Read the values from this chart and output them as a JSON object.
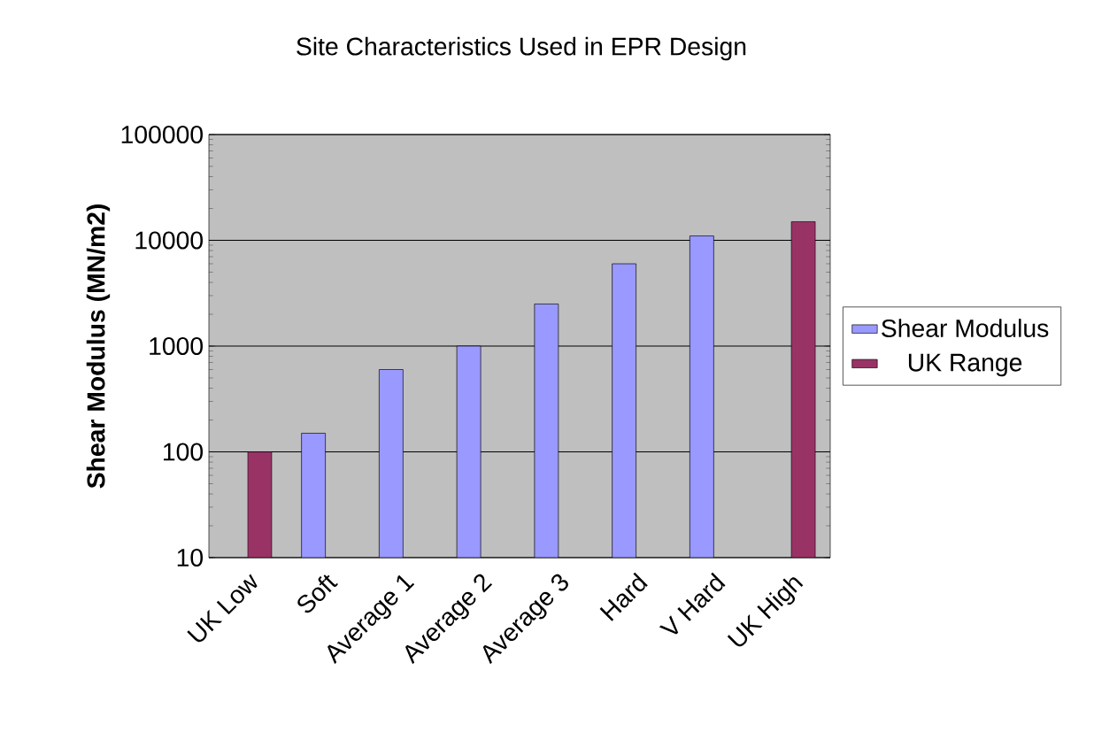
{
  "chart_data": {
    "type": "bar",
    "title": "Site Characteristics Used in EPR Design",
    "ylabel": "Shear Modulus (MN/m2)",
    "categories": [
      "UK Low",
      "Soft",
      "Average 1",
      "Average 2",
      "Average 3",
      "Hard",
      "V Hard",
      "UK High"
    ],
    "series": [
      {
        "name": "Shear Modulus",
        "color": "#9999ff",
        "values": [
          null,
          150,
          600,
          1000,
          2500,
          6000,
          11000,
          null
        ]
      },
      {
        "name": "UK Range",
        "color": "#993366",
        "values": [
          100,
          null,
          null,
          null,
          null,
          null,
          null,
          15000
        ]
      }
    ],
    "log": true,
    "ylim": [
      10,
      100000
    ],
    "yticks": [
      10,
      100,
      1000,
      10000,
      100000
    ],
    "grid": "y",
    "legend": "right"
  }
}
